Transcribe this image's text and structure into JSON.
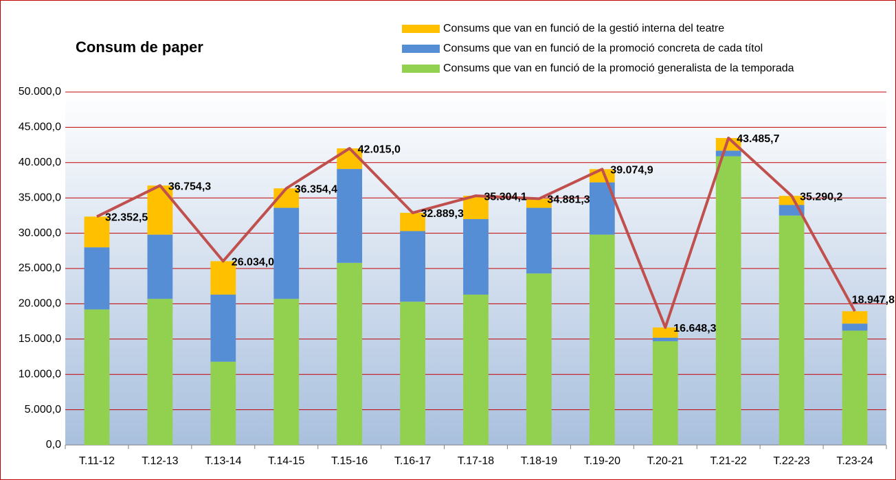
{
  "chart_data": {
    "type": "stacked_bar_line",
    "title": "Consum de paper",
    "categories": [
      "T.11-12",
      "T.12-13",
      "T.13-14",
      "T.14-15",
      "T.15-16",
      "T.16-17",
      "T.17-18",
      "T.18-19",
      "T.19-20",
      "T.20-21",
      "T.21-22",
      "T.22-23",
      "T.23-24"
    ],
    "series": [
      {
        "name": "Consums que van en funció de la promoció generalista de la temporada",
        "color": "#92d050",
        "values": [
          19200,
          20700,
          11800,
          20700,
          25800,
          20300,
          21300,
          24300,
          29800,
          14700,
          40900,
          32500,
          16200
        ]
      },
      {
        "name": "Consums que van en funció de la promoció concreta de cada títol",
        "color": "#558ed5",
        "values": [
          8800,
          9100,
          9500,
          12900,
          13300,
          10000,
          10700,
          9300,
          7400,
          500,
          800,
          1500,
          1000
        ]
      },
      {
        "name": "Consums que van en funció de la gestió interna del teatre",
        "color": "#ffc000",
        "values": [
          4352.5,
          6954.3,
          4734,
          2754.4,
          2915,
          2589.3,
          3304.1,
          1281.3,
          1874.9,
          1448.3,
          1785.7,
          1290.2,
          1747.8
        ]
      }
    ],
    "totals": {
      "color": "#c0504d",
      "values": [
        32352.5,
        36754.3,
        26034,
        36354.4,
        42015,
        32889.3,
        35304.1,
        34881.3,
        39074.9,
        16648.3,
        43485.7,
        35290.2,
        18947.8
      ],
      "value_labels": [
        "32.352,5",
        "36.754,3",
        "26.034,0",
        "36.354,4",
        "42.015,0",
        "32.889,3",
        "35.304,1",
        "34.881,3",
        "39.074,9",
        "16.648,3",
        "43.485,7",
        "35.290,2",
        "18.947,8"
      ]
    },
    "ylim": [
      0,
      50000
    ],
    "yticks": [
      {
        "value": 0,
        "label": "0,0"
      },
      {
        "value": 5000,
        "label": "5.000,0"
      },
      {
        "value": 10000,
        "label": "10.000,0"
      },
      {
        "value": 15000,
        "label": "15.000,0"
      },
      {
        "value": 20000,
        "label": "20.000,0"
      },
      {
        "value": 25000,
        "label": "25.000,0"
      },
      {
        "value": 30000,
        "label": "30.000,0"
      },
      {
        "value": 35000,
        "label": "35.000,0"
      },
      {
        "value": 40000,
        "label": "40.000,0"
      },
      {
        "value": 45000,
        "label": "45.000,0"
      },
      {
        "value": 50000,
        "label": "50.000,0"
      }
    ],
    "grid": true
  }
}
